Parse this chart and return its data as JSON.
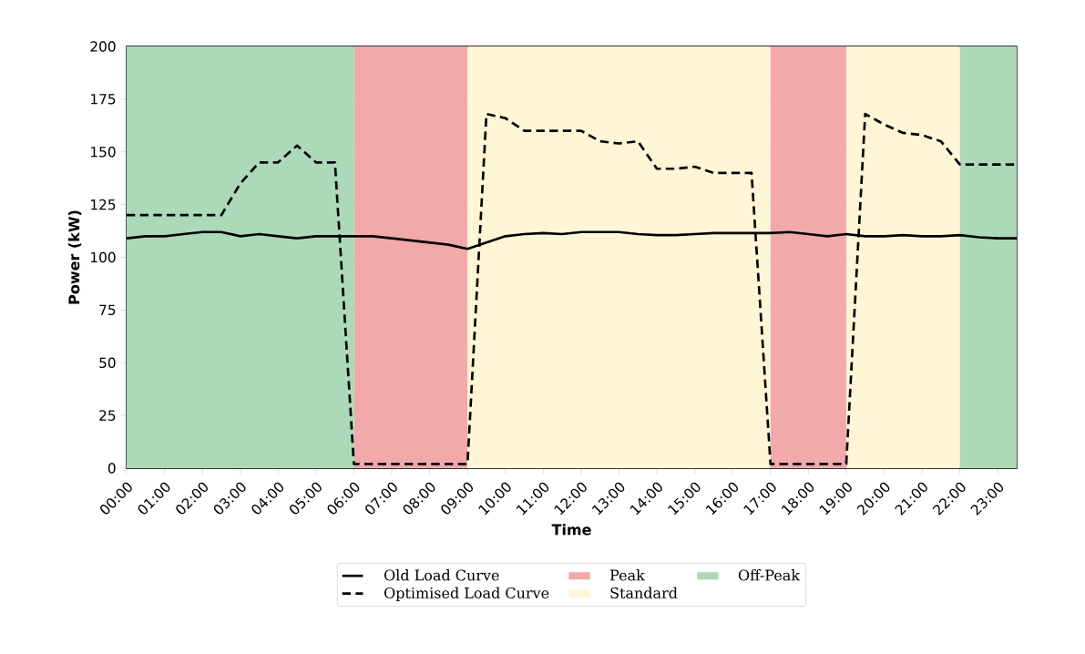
{
  "chart_data": {
    "type": "line",
    "xlabel": "Time",
    "ylabel": "Power (kW)",
    "x": [
      0,
      0.5,
      1,
      1.5,
      2,
      2.5,
      3,
      3.5,
      4,
      4.5,
      5,
      5.5,
      6,
      6.5,
      7,
      7.5,
      8,
      8.5,
      9,
      9.5,
      10,
      10.5,
      11,
      11.5,
      12,
      12.5,
      13,
      13.5,
      14,
      14.5,
      15,
      15.5,
      16,
      16.5,
      17,
      17.5,
      18,
      18.5,
      19,
      19.5,
      20,
      20.5,
      21,
      21.5,
      22,
      22.5,
      23,
      23.5
    ],
    "series": [
      {
        "name": "Old Load Curve",
        "color": "#000000",
        "line_style": "solid",
        "values": [
          109,
          110,
          110,
          111,
          112,
          112,
          110,
          111,
          110,
          109,
          110,
          110,
          110,
          110,
          109,
          108,
          107,
          106,
          104,
          107,
          110,
          111,
          111.5,
          111,
          112,
          112,
          112,
          111,
          110.5,
          110.5,
          111,
          111.5,
          111.5,
          111.5,
          111.5,
          112,
          111,
          110,
          111,
          110,
          110,
          110.5,
          110,
          110,
          110.5,
          109.5,
          109,
          109
        ]
      },
      {
        "name": "Optimised Load Curve",
        "color": "#000000",
        "line_style": "dashed",
        "values": [
          120,
          120,
          120,
          120,
          120,
          120,
          135,
          145,
          145,
          153,
          145,
          145,
          2,
          2,
          2,
          2,
          2,
          2,
          2,
          168,
          166,
          160,
          160,
          160,
          160,
          155,
          154,
          155,
          142,
          142,
          143,
          140,
          140,
          140,
          2,
          2,
          2,
          2,
          2,
          168,
          163,
          159,
          158,
          155,
          144,
          144,
          144,
          144
        ]
      }
    ],
    "bands": [
      {
        "axis": "x",
        "from": 6,
        "to": 9,
        "label": "Peak",
        "color": "#f1a9a9"
      },
      {
        "axis": "x",
        "from": 9,
        "to": 17,
        "label": "Standard",
        "color": "#fff6d6"
      },
      {
        "axis": "x",
        "from": 0,
        "to": 6,
        "label": "Off-Peak",
        "color": "#acd9b8"
      },
      {
        "axis": "x",
        "from": 17,
        "to": 19,
        "color": "#f1a9a9"
      },
      {
        "axis": "x",
        "from": 19,
        "to": 22,
        "color": "#fff6d6"
      },
      {
        "axis": "x",
        "from": 22,
        "to": 23.5,
        "color": "#acd9b8"
      }
    ],
    "xlim": [
      0,
      23.5
    ],
    "ylim": [
      0,
      200
    ],
    "xticks": [
      {
        "value": 0,
        "label": "00:00"
      },
      {
        "value": 1,
        "label": "01:00"
      },
      {
        "value": 2,
        "label": "02:00"
      },
      {
        "value": 3,
        "label": "03:00"
      },
      {
        "value": 4,
        "label": "04:00"
      },
      {
        "value": 5,
        "label": "05:00"
      },
      {
        "value": 6,
        "label": "06:00"
      },
      {
        "value": 7,
        "label": "07:00"
      },
      {
        "value": 8,
        "label": "08:00"
      },
      {
        "value": 9,
        "label": "09:00"
      },
      {
        "value": 10,
        "label": "10:00"
      },
      {
        "value": 11,
        "label": "11:00"
      },
      {
        "value": 12,
        "label": "12:00"
      },
      {
        "value": 13,
        "label": "13:00"
      },
      {
        "value": 14,
        "label": "14:00"
      },
      {
        "value": 15,
        "label": "15:00"
      },
      {
        "value": 16,
        "label": "16:00"
      },
      {
        "value": 17,
        "label": "17:00"
      },
      {
        "value": 18,
        "label": "18:00"
      },
      {
        "value": 19,
        "label": "19:00"
      },
      {
        "value": 20,
        "label": "20:00"
      },
      {
        "value": 21,
        "label": "21:00"
      },
      {
        "value": 22,
        "label": "22:00"
      },
      {
        "value": 23,
        "label": "23:00"
      }
    ],
    "yticks": [
      0,
      25,
      50,
      75,
      100,
      125,
      150,
      175,
      200
    ],
    "grid": "y",
    "legend": "bottom",
    "marker": "none"
  }
}
